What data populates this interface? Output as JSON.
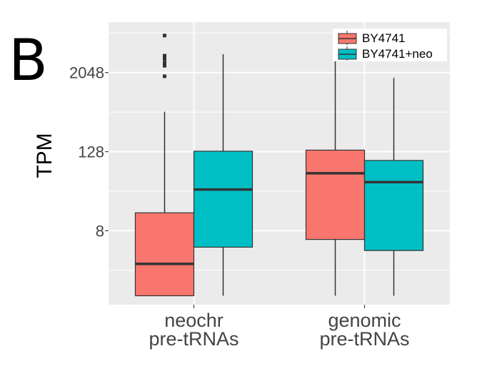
{
  "panel_label": "B",
  "chart_data": {
    "type": "box",
    "title": "",
    "xlabel": "",
    "ylabel": "TPM",
    "y_scale": "log2",
    "ylim": [
      0.6,
      12000
    ],
    "y_ticks": [
      8,
      128,
      2048
    ],
    "y_tick_labels": [
      "8",
      "128",
      "2048"
    ],
    "grid": true,
    "legend_position": "top-right",
    "categories": [
      {
        "line1": "neochr",
        "line2": "pre-tRNAs"
      },
      {
        "line1": "genomic",
        "line2": "pre-tRNAs"
      }
    ],
    "series": [
      {
        "name": "BY4741",
        "color": "#F8766D",
        "boxes": [
          {
            "min": 0.82,
            "q1": 0.82,
            "median": 2.5,
            "q3": 15,
            "max": 520,
            "outliers": [
              1800,
              2600,
              2900,
              3300,
              3700,
              7500
            ]
          },
          {
            "min": 0.82,
            "q1": 5.9,
            "median": 60,
            "q3": 135,
            "max": 7800,
            "outliers": []
          }
        ]
      },
      {
        "name": "BY4741+neo",
        "color": "#00BFC4",
        "boxes": [
          {
            "min": 0.82,
            "q1": 4.5,
            "median": 34,
            "q3": 130,
            "max": 3900,
            "outliers": []
          },
          {
            "min": 0.82,
            "q1": 4.0,
            "median": 44,
            "q3": 94,
            "max": 1700,
            "outliers": []
          }
        ]
      }
    ]
  }
}
